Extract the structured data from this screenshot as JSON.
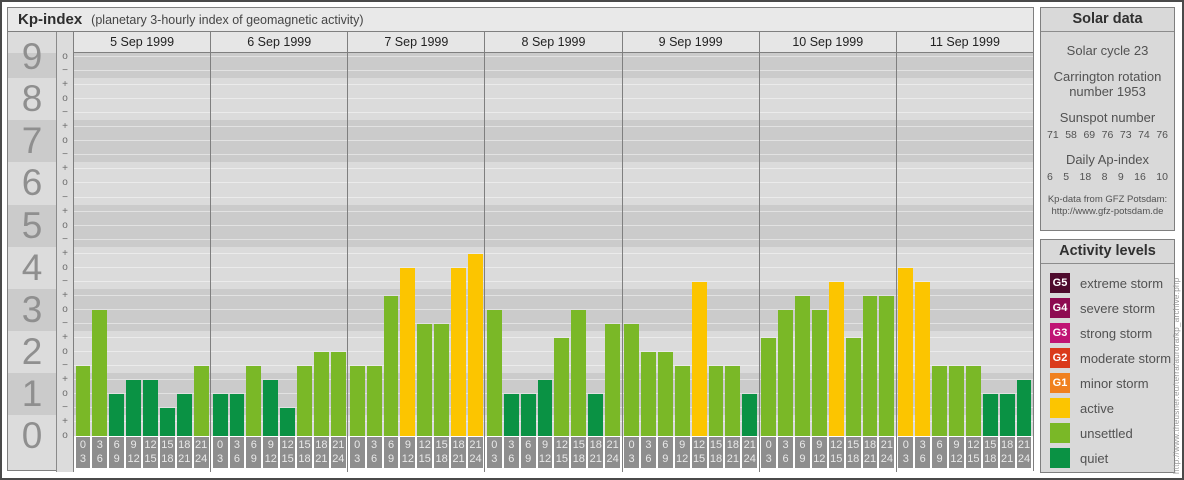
{
  "page": {
    "credit_vertical": "http://www.theusner.eu/terra/aurora/kp_archive.php"
  },
  "chart": {
    "title": "Kp-index",
    "subtitle": "(planetary 3-hourly index of geomagnetic activity)"
  },
  "chart_data": {
    "type": "bar",
    "title": "Kp-index",
    "ylabel": "Kp",
    "ylim": [
      0,
      9.1
    ],
    "y_axis_numbers": [
      9,
      8,
      7,
      6,
      5,
      4,
      3,
      2,
      1,
      0
    ],
    "x_slot_labels": [
      [
        "0",
        "3"
      ],
      [
        "3",
        "6"
      ],
      [
        "6",
        "9"
      ],
      [
        "9",
        "12"
      ],
      [
        "12",
        "15"
      ],
      [
        "15",
        "18"
      ],
      [
        "18",
        "21"
      ],
      [
        "21",
        "24"
      ]
    ],
    "days": [
      {
        "date": "5 Sep 1999",
        "kp": [
          1.67,
          3,
          1,
          1.33,
          1.33,
          0.67,
          1,
          1.67
        ],
        "kp_labels": [
          "2-",
          "3o",
          "1o",
          "1+",
          "1+",
          "1-",
          "1o",
          "2-"
        ]
      },
      {
        "date": "6 Sep 1999",
        "kp": [
          1,
          1,
          1.67,
          1.33,
          0.67,
          1.67,
          2,
          2
        ],
        "kp_labels": [
          "1o",
          "1o",
          "2-",
          "1+",
          "1-",
          "2-",
          "2o",
          "2o"
        ]
      },
      {
        "date": "7 Sep 1999",
        "kp": [
          1.67,
          1.67,
          3.33,
          4,
          2.67,
          2.67,
          4,
          4.33
        ],
        "kp_labels": [
          "2-",
          "2-",
          "3+",
          "4o",
          "3-",
          "3-",
          "4o",
          "4+"
        ]
      },
      {
        "date": "8 Sep 1999",
        "kp": [
          3,
          1,
          1,
          1.33,
          2.33,
          3,
          1,
          2.67
        ],
        "kp_labels": [
          "3o",
          "1o",
          "1o",
          "1+",
          "2+",
          "3o",
          "1o",
          "3-"
        ]
      },
      {
        "date": "9 Sep 1999",
        "kp": [
          2.67,
          2,
          2,
          1.67,
          3.67,
          1.67,
          1.67,
          1
        ],
        "kp_labels": [
          "3-",
          "2o",
          "2o",
          "2-",
          "4-",
          "2-",
          "2-",
          "1o"
        ]
      },
      {
        "date": "10 Sep 1999",
        "kp": [
          2.33,
          3,
          3.33,
          3,
          3.67,
          2.33,
          3.33,
          3.33
        ],
        "kp_labels": [
          "2+",
          "3o",
          "3+",
          "3o",
          "4-",
          "2+",
          "3+",
          "3+"
        ]
      },
      {
        "date": "11 Sep 1999",
        "kp": [
          4,
          3.67,
          1.67,
          1.67,
          1.67,
          1,
          1,
          1.33
        ],
        "kp_labels": [
          "4o",
          "4-",
          "2-",
          "2-",
          "2-",
          "1o",
          "1o",
          "1+"
        ]
      }
    ],
    "level_colors": {
      "quiet": "#0a9244",
      "unsettled": "#7ab827",
      "active": "#fcc500"
    },
    "thresholds": {
      "unsettled_min": 1.67,
      "active_min": 3.67
    },
    "grid": "horizontal thirds",
    "legend_position": "right panel"
  },
  "solar_panel": {
    "title": "Solar data",
    "solar_cycle": "Solar cycle 23",
    "carrington": "Carrington rotation number 1953",
    "sunspot_title": "Sunspot number",
    "sunspot_values": [
      "71",
      "58",
      "69",
      "76",
      "73",
      "74",
      "76"
    ],
    "ap_title": "Daily Ap-index",
    "ap_values": [
      "6",
      "5",
      "18",
      "8",
      "9",
      "16",
      "10"
    ],
    "source_line1": "Kp-data from GFZ Potsdam:",
    "source_line2": "http://www.gfz-potsdam.de"
  },
  "activity_panel": {
    "title": "Activity levels",
    "levels": [
      {
        "badge": "G5",
        "label": "extreme storm",
        "color": "#4e0b2d"
      },
      {
        "badge": "G4",
        "label": "severe storm",
        "color": "#8e0b51"
      },
      {
        "badge": "G3",
        "label": "strong storm",
        "color": "#c01474"
      },
      {
        "badge": "G2",
        "label": "moderate storm",
        "color": "#da3a1b"
      },
      {
        "badge": "G1",
        "label": "minor storm",
        "color": "#f0801f"
      },
      {
        "badge": "",
        "label": "active",
        "color": "#fcc500"
      },
      {
        "badge": "",
        "label": "unsettled",
        "color": "#7ab827"
      },
      {
        "badge": "",
        "label": "quiet",
        "color": "#0a9244"
      }
    ]
  }
}
